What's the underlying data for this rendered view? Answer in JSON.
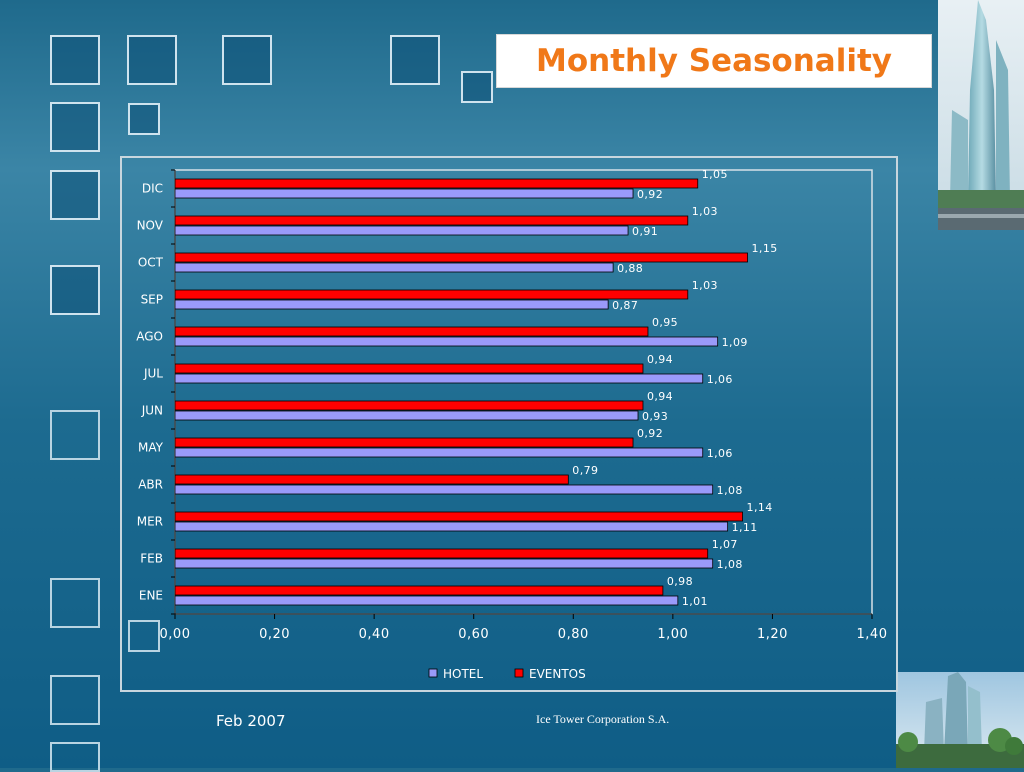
{
  "title": "Monthly Seasonality",
  "footer": {
    "date": "Feb 2007",
    "company": "Ice Tower Corporation S.A."
  },
  "colors": {
    "hotel": "#9a9afa",
    "eventos": "#ff0000",
    "title": "#f07818"
  },
  "chart_data": {
    "type": "bar",
    "orientation": "horizontal",
    "categories": [
      "ENE",
      "FEB",
      "MER",
      "ABR",
      "MAY",
      "JUN",
      "JUL",
      "AGO",
      "SEP",
      "OCT",
      "NOV",
      "DIC"
    ],
    "series": [
      {
        "name": "HOTEL",
        "color": "#9a9afa",
        "values": [
          1.01,
          1.08,
          1.11,
          1.08,
          1.06,
          0.93,
          1.06,
          1.09,
          0.87,
          0.88,
          0.91,
          0.92
        ],
        "labels": [
          "1,01",
          "1,08",
          "1,11",
          "1,08",
          "1,06",
          "0,93",
          "1,06",
          "1,09",
          "0,87",
          "0,88",
          "0,91",
          "0,92"
        ]
      },
      {
        "name": "EVENTOS",
        "color": "#ff0000",
        "values": [
          0.98,
          1.07,
          1.14,
          0.79,
          0.92,
          0.94,
          0.94,
          0.95,
          1.03,
          1.15,
          1.03,
          1.05
        ],
        "labels": [
          "0,98",
          "1,07",
          "1,14",
          "0,79",
          "0,92",
          "0,94",
          "0,94",
          "0,95",
          "1,03",
          "1,15",
          "1,03",
          "1,05"
        ]
      }
    ],
    "xlim": [
      0,
      1.4
    ],
    "xticks": [
      0,
      0.2,
      0.4,
      0.6,
      0.8,
      1.0,
      1.2,
      1.4
    ],
    "xtick_labels": [
      "0,00",
      "0,20",
      "0,40",
      "0,60",
      "0,80",
      "1,00",
      "1,20",
      "1,40"
    ],
    "legend": [
      "HOTEL",
      "EVENTOS"
    ],
    "legend_position": "bottom",
    "grid": false
  }
}
